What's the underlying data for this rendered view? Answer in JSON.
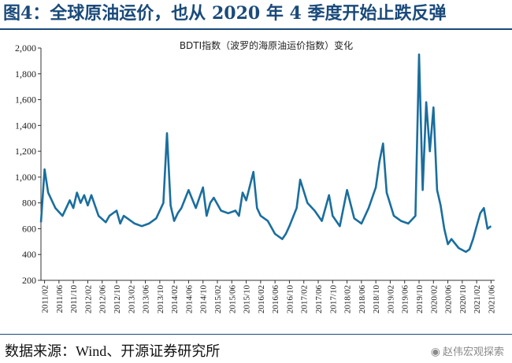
{
  "figure_title": "图4：全球原油运价，也从 2020 年 4 季度开始止跌反弹",
  "source": "数据来源：Wind、开源证券研究所",
  "watermark": "赵伟宏观探索",
  "watermark_icon": "wechat-icon",
  "colors": {
    "title": "#1a4a7a",
    "line": "#1a6e9e",
    "axis": "#333333"
  },
  "chart_data": {
    "type": "line",
    "title": "BDTI指数（波罗的海原油运价指数）变化",
    "xlabel": "",
    "ylabel": "",
    "ylim": [
      200,
      2000
    ],
    "yticks": [
      200,
      400,
      600,
      800,
      1000,
      1200,
      1400,
      1600,
      1800,
      2000
    ],
    "ytick_labels": [
      "200",
      "400",
      "600",
      "800",
      "1,000",
      "1,200",
      "1,400",
      "1,600",
      "1,800",
      "2,000"
    ],
    "xticks": [
      "2011/02",
      "2011/06",
      "2011/10",
      "2012/02",
      "2012/06",
      "2012/10",
      "2013/02",
      "2013/06",
      "2013/10",
      "2014/02",
      "2014/06",
      "2014/10",
      "2015/02",
      "2015/06",
      "2015/10",
      "2016/02",
      "2016/06",
      "2016/10",
      "2017/02",
      "2017/06",
      "2017/10",
      "2018/02",
      "2018/06",
      "2018/10",
      "2019/02",
      "2019/06",
      "2019/10",
      "2020/02",
      "2020/06",
      "2020/10",
      "2021/02",
      "2021/06"
    ],
    "grid": false,
    "legend": "none",
    "series": [
      {
        "name": "",
        "x": [
          "2011/01",
          "2011/02",
          "2011/03",
          "2011/05",
          "2011/07",
          "2011/09",
          "2011/10",
          "2011/11",
          "2011/12",
          "2012/01",
          "2012/02",
          "2012/03",
          "2012/05",
          "2012/07",
          "2012/08",
          "2012/10",
          "2012/11",
          "2012/12",
          "2013/01",
          "2013/03",
          "2013/05",
          "2013/07",
          "2013/09",
          "2013/11",
          "2013/12",
          "2014/01",
          "2014/02",
          "2014/03",
          "2014/04",
          "2014/06",
          "2014/08",
          "2014/10",
          "2014/11",
          "2014/12",
          "2015/01",
          "2015/03",
          "2015/05",
          "2015/07",
          "2015/08",
          "2015/09",
          "2015/10",
          "2015/12",
          "2016/01",
          "2016/02",
          "2016/04",
          "2016/06",
          "2016/08",
          "2016/09",
          "2016/10",
          "2016/12",
          "2017/01",
          "2017/03",
          "2017/05",
          "2017/07",
          "2017/09",
          "2017/10",
          "2017/12",
          "2018/01",
          "2018/02",
          "2018/04",
          "2018/06",
          "2018/08",
          "2018/10",
          "2018/11",
          "2018/12",
          "2019/01",
          "2019/03",
          "2019/05",
          "2019/07",
          "2019/09",
          "2019/10",
          "2019/11",
          "2019/12",
          "2020/01",
          "2020/02",
          "2020/03",
          "2020/04",
          "2020/05",
          "2020/06",
          "2020/07",
          "2020/09",
          "2020/11",
          "2020/12",
          "2021/01",
          "2021/02",
          "2021/03",
          "2021/04",
          "2021/05",
          "2021/06"
        ],
        "values": [
          650,
          1060,
          880,
          760,
          700,
          820,
          760,
          880,
          800,
          860,
          780,
          860,
          700,
          650,
          700,
          740,
          640,
          700,
          680,
          640,
          620,
          640,
          680,
          800,
          1340,
          780,
          660,
          720,
          760,
          900,
          760,
          920,
          700,
          800,
          840,
          740,
          720,
          740,
          700,
          880,
          820,
          1040,
          760,
          700,
          660,
          560,
          520,
          560,
          620,
          760,
          980,
          800,
          740,
          660,
          860,
          700,
          620,
          760,
          900,
          680,
          640,
          760,
          920,
          1120,
          1260,
          880,
          700,
          660,
          640,
          700,
          1950,
          900,
          1580,
          1200,
          1540,
          900,
          780,
          600,
          480,
          520,
          450,
          420,
          440,
          520,
          620,
          720,
          760,
          600,
          620
        ]
      }
    ]
  }
}
